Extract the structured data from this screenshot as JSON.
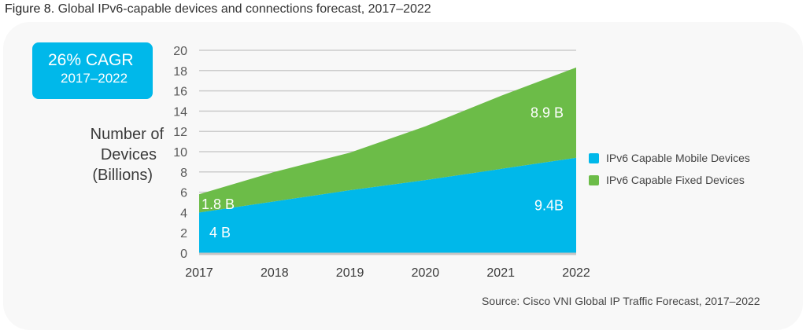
{
  "figure": {
    "label": "Figure 8.",
    "title": "Global IPv6-capable devices and connections forecast, 2017–2022"
  },
  "callout": {
    "headline": "26% CAGR",
    "period": "2017–2022"
  },
  "source": "Source: Cisco VNI Global IP Traffic Forecast, 2017–2022",
  "colors": {
    "mobile": "#00b8ea",
    "fixed": "#6cbc48",
    "grid": "#cccccc",
    "axis": "#c4c4c4",
    "callout": "#00b8ea"
  },
  "chart_data": {
    "type": "area",
    "stacked": true,
    "title": "Global IPv6-capable devices and connections forecast, 2017–2022",
    "xlabel": "",
    "ylabel": [
      "Number of",
      "Devices",
      "(Billions)"
    ],
    "categories": [
      "2017",
      "2018",
      "2019",
      "2020",
      "2021",
      "2022"
    ],
    "ylim": [
      0,
      20
    ],
    "yticks": [
      0,
      2,
      4,
      6,
      8,
      10,
      12,
      14,
      16,
      18,
      20
    ],
    "grid": true,
    "legend_position": "right",
    "series": [
      {
        "name": "IPv6 Capable Mobile Devices",
        "key": "mobile",
        "values": [
          4.0,
          5.1,
          6.2,
          7.2,
          8.3,
          9.4
        ]
      },
      {
        "name": "IPv6 Capable Fixed Devices",
        "key": "fixed",
        "values": [
          1.8,
          2.9,
          3.7,
          5.3,
          7.2,
          8.9
        ]
      }
    ],
    "annotations": [
      {
        "text": "4 B",
        "series": "mobile",
        "category": "2017"
      },
      {
        "text": "1.8 B",
        "series": "fixed",
        "category": "2017"
      },
      {
        "text": "9.4B",
        "series": "mobile",
        "category": "2022"
      },
      {
        "text": "8.9 B",
        "series": "fixed",
        "category": "2022"
      }
    ]
  }
}
